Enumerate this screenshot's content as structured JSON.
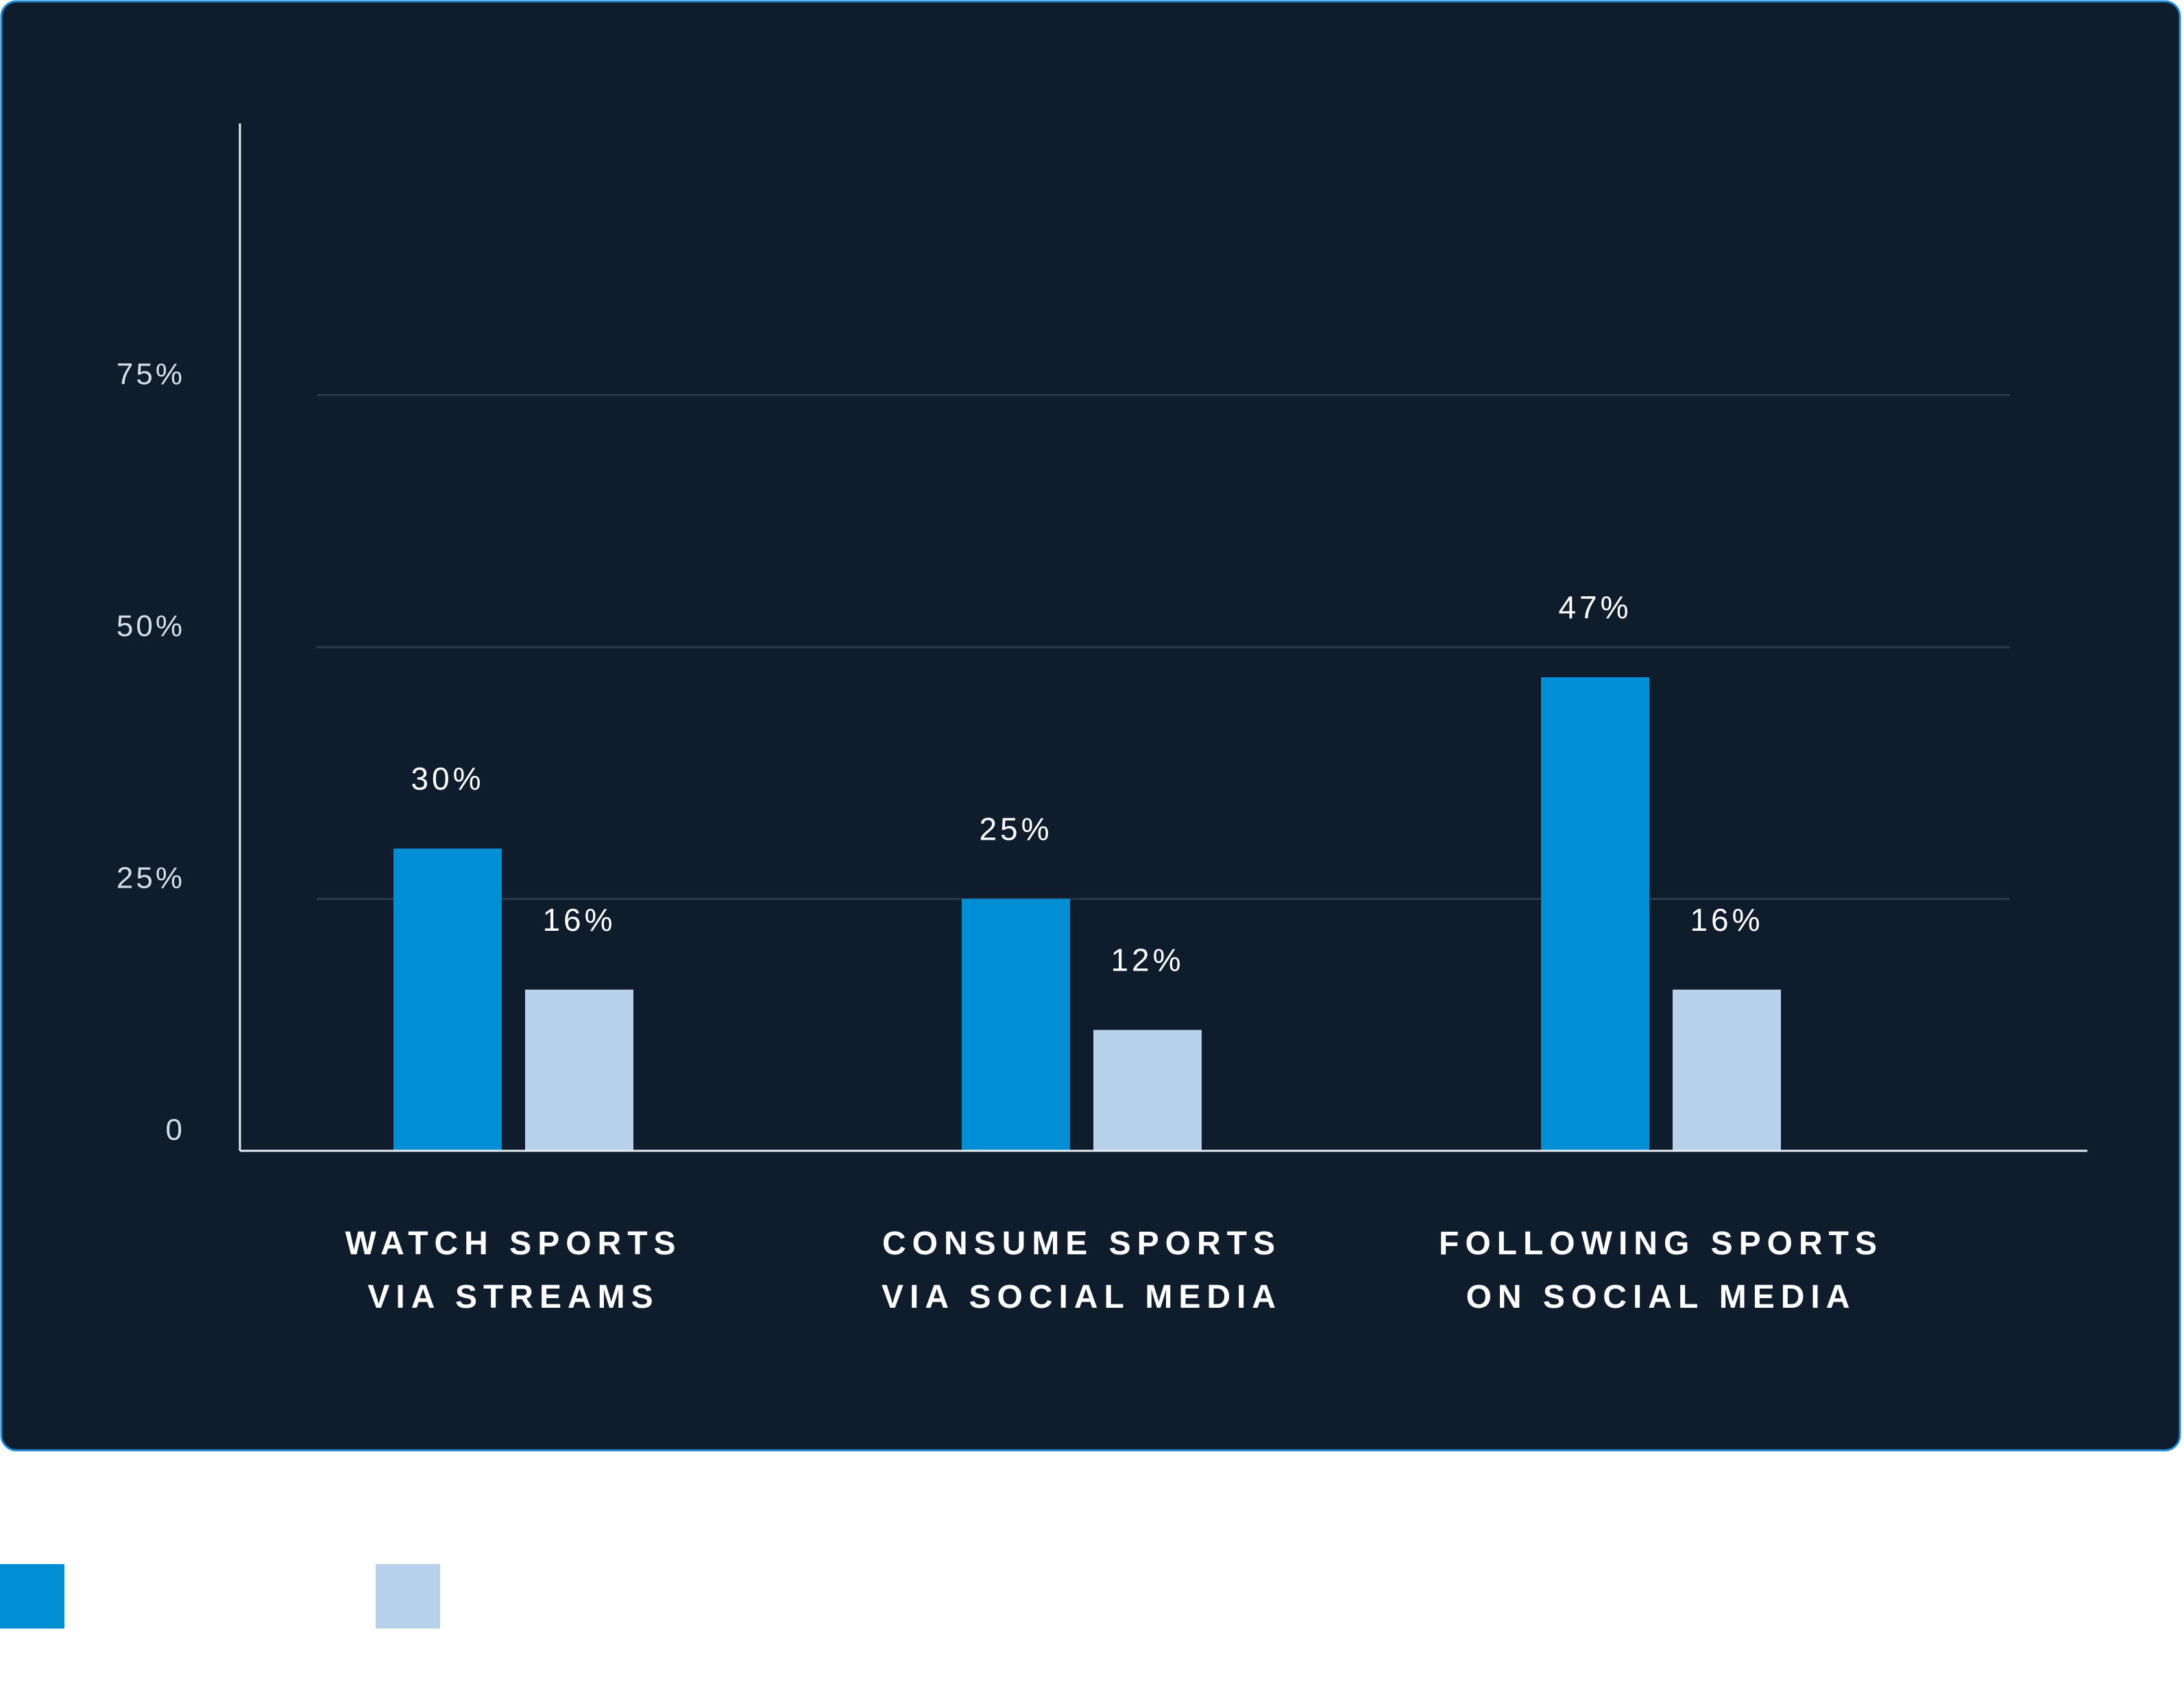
{
  "colors": {
    "panel_background": "#0f1c2b",
    "panel_border": "#1d8ad6",
    "axis": "#e6ecf2",
    "gridline": "#2a3746",
    "text": "#ffffff",
    "tick_text": "#d5dde6",
    "series_1": "#008fd5",
    "series_2": "#b8d2ec"
  },
  "chart_data": {
    "type": "bar",
    "categories": [
      [
        "WATCH SPORTS",
        "VIA STREAMS"
      ],
      [
        "CONSUME SPORTS",
        "VIA SOCIAL MEDIA"
      ],
      [
        "FOLLOWING SPORTS",
        "ON SOCIAL MEDIA"
      ]
    ],
    "series": [
      {
        "values": [
          30,
          25,
          47
        ],
        "labels": [
          "30%",
          "25%",
          "47%"
        ]
      },
      {
        "values": [
          16,
          12,
          16
        ],
        "labels": [
          "16%",
          "12%",
          "16%"
        ]
      }
    ],
    "yticks": [
      {
        "value": 0,
        "label": "0"
      },
      {
        "value": 25,
        "label": "25%"
      },
      {
        "value": 50,
        "label": "50%"
      },
      {
        "value": 75,
        "label": "75%"
      }
    ],
    "ylim": [
      0,
      100
    ],
    "grid": true,
    "legend": {
      "placement": "bottom-left",
      "entries": [
        "",
        ""
      ]
    }
  }
}
